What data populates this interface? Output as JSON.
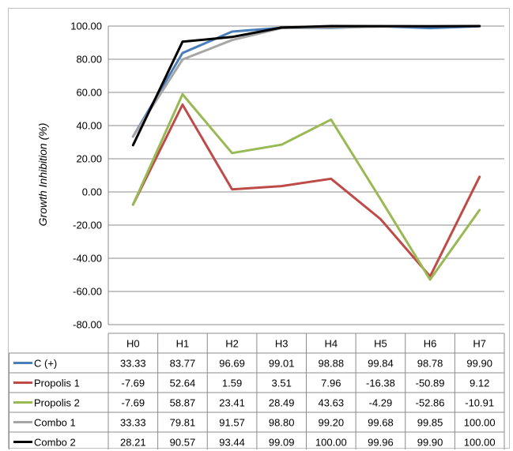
{
  "chart_data": {
    "type": "line",
    "title": "",
    "xlabel": "",
    "ylabel": "Growth Inhibition (%)",
    "ylim": [
      -80,
      100
    ],
    "ytick_step": 20,
    "ytick_labels": [
      "100.00",
      "80.00",
      "60.00",
      "40.00",
      "20.00",
      "0.00",
      "-20.00",
      "-40.00",
      "-60.00",
      "-80.00"
    ],
    "grid": true,
    "legend": "data-table-below",
    "categories": [
      "H0",
      "H1",
      "H2",
      "H3",
      "H4",
      "H5",
      "H6",
      "H7"
    ],
    "series": [
      {
        "name": "C (+)",
        "color": "#4a7ebb",
        "values": [
          33.33,
          83.77,
          96.69,
          99.01,
          98.88,
          99.84,
          98.78,
          99.9
        ],
        "labels": [
          "33.33",
          "83.77",
          "96.69",
          "99.01",
          "98.88",
          "99.84",
          "98.78",
          "99.90"
        ]
      },
      {
        "name": "Propolis 1",
        "color": "#be4b48",
        "values": [
          -7.69,
          52.64,
          1.59,
          3.51,
          7.96,
          -16.38,
          -50.89,
          9.12
        ],
        "labels": [
          "-7.69",
          "52.64",
          "1.59",
          "3.51",
          "7.96",
          "-16.38",
          "-50.89",
          "9.12"
        ]
      },
      {
        "name": "Propolis 2",
        "color": "#98b954",
        "values": [
          -7.69,
          58.87,
          23.41,
          28.49,
          43.63,
          -4.29,
          -52.86,
          -10.91
        ],
        "labels": [
          "-7.69",
          "58.87",
          "23.41",
          "28.49",
          "43.63",
          "-4.29",
          "-52.86",
          "-10.91"
        ]
      },
      {
        "name": "Combo 1",
        "color": "#a6a6a6",
        "values": [
          33.33,
          79.81,
          91.57,
          98.8,
          99.2,
          99.68,
          99.85,
          100.0
        ],
        "labels": [
          "33.33",
          "79.81",
          "91.57",
          "98.80",
          "99.20",
          "99.68",
          "99.85",
          "100.00"
        ]
      },
      {
        "name": "Combo 2",
        "color": "#000000",
        "values": [
          28.21,
          90.57,
          93.44,
          99.09,
          100.0,
          99.96,
          99.9,
          100.0
        ],
        "labels": [
          "28.21",
          "90.57",
          "93.44",
          "99.09",
          "100.00",
          "99.96",
          "99.90",
          "100.00"
        ]
      }
    ]
  }
}
